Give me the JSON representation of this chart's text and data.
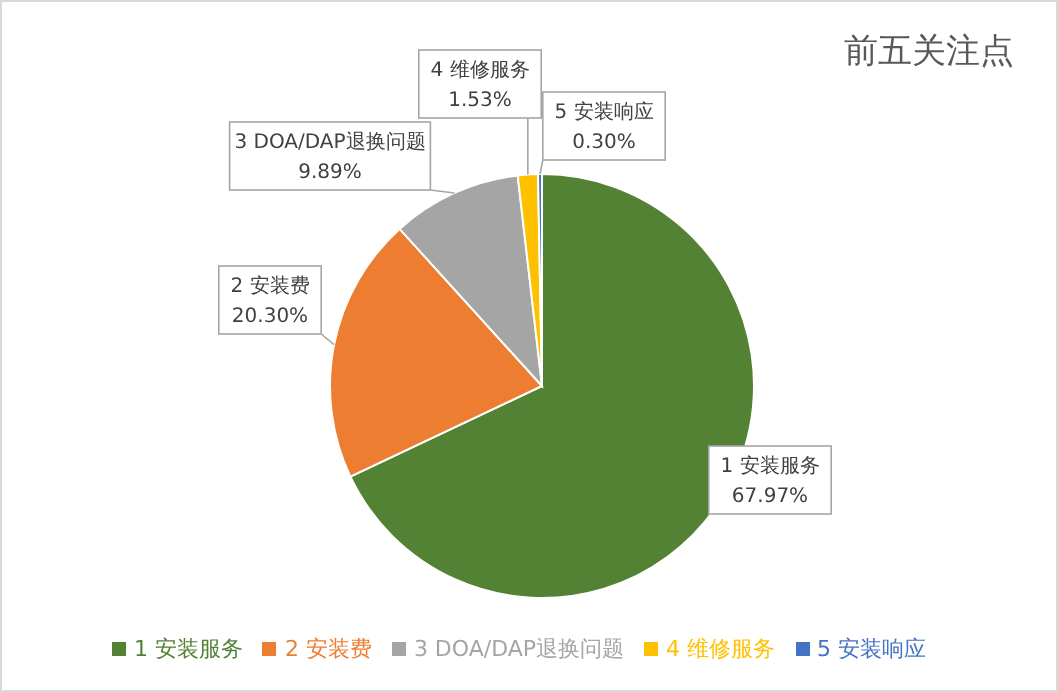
{
  "chart_data": {
    "type": "pie",
    "title": "前五关注点",
    "categories": [
      "1 安装服务",
      "2 安装费",
      "3 DOA/DAP退换问题",
      "4 维修服务",
      "5 安装响应"
    ],
    "values": [
      67.97,
      20.3,
      9.89,
      1.53,
      0.3
    ],
    "colors": [
      "#548235",
      "#ed7d31",
      "#a5a5a5",
      "#ffc000",
      "#4472c4"
    ],
    "value_labels": [
      "67.97%",
      "20.30%",
      "9.89%",
      "1.53%",
      "0.30%"
    ],
    "legend": "bottom"
  }
}
